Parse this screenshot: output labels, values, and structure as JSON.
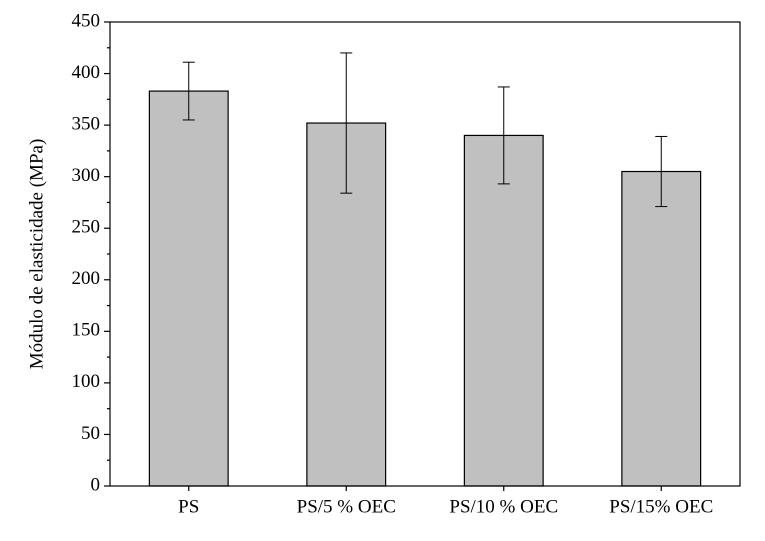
{
  "chart_data": {
    "type": "bar",
    "y_label": "Módulo de elasticidade (MPa)",
    "categories": [
      "PS",
      "PS/5 % OEC",
      "PS/10 % OEC",
      "PS/15% OEC"
    ],
    "values": [
      383,
      352,
      340,
      305
    ],
    "errors": [
      28,
      68,
      47,
      34
    ],
    "color": "#c0c0c0",
    "ylim": [
      0,
      450
    ],
    "yticks": [
      0,
      50,
      100,
      150,
      200,
      250,
      300,
      350,
      400,
      450
    ]
  }
}
